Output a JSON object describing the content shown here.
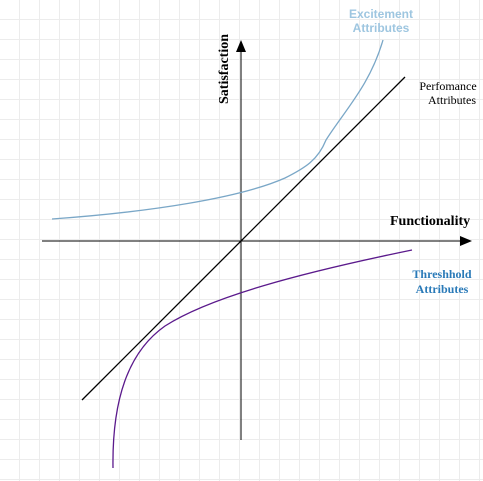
{
  "axes": {
    "x_label": "Functionality",
    "y_label": "Satisfaction"
  },
  "curves": {
    "excitement": {
      "label_line1": "Excitement",
      "label_line2": "Attributes",
      "color": "#7aa7c7",
      "label_color": "#9ec6e0"
    },
    "performance": {
      "label_line1": "Perfomance",
      "label_line2": "Attributes",
      "color": "#000000"
    },
    "threshold": {
      "label_line1": "Threshhold",
      "label_line2": "Attributes",
      "color": "#5b1a8c",
      "label_color": "#2a7ab8"
    }
  }
}
